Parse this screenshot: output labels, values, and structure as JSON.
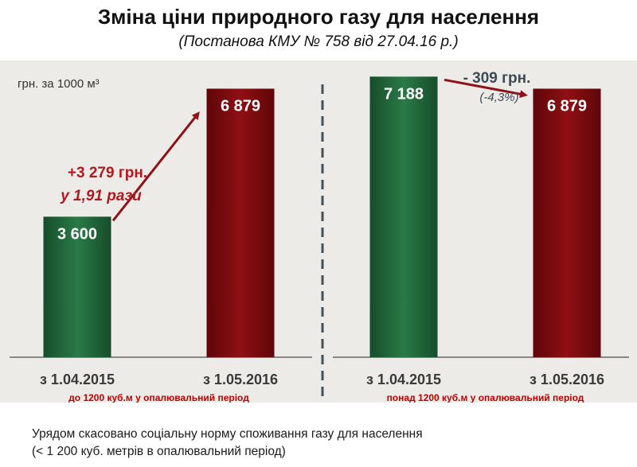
{
  "header": {
    "title": "Зміна ціни природного газу для населення",
    "subtitle": "(Постанова КМУ № 758 від 27.04.16 р.)"
  },
  "chart_data": {
    "type": "bar",
    "unit_label": "грн. за 1000 м³",
    "groups": [
      {
        "label": "до 1200 куб.м у опалювальний період",
        "categories": [
          "з 1.04.2015",
          "з 1.05.2016"
        ],
        "values": [
          3600,
          6879
        ],
        "value_labels": [
          "3 600",
          "6 879"
        ],
        "colors": [
          "#1d5e35",
          "#7e0b0f"
        ],
        "annotation": {
          "line1": "+3 279 грн.",
          "line2": "у 1,91 рази",
          "color": "#b01a1e"
        }
      },
      {
        "label": "понад 1200 куб.м у опалювальний період",
        "categories": [
          "з 1.04.2015",
          "з 1.05.2016"
        ],
        "values": [
          7188,
          6879
        ],
        "value_labels": [
          "7 188",
          "6 879"
        ],
        "colors": [
          "#1d5e35",
          "#7e0b0f"
        ],
        "annotation": {
          "line1": "- 309 грн.",
          "line2": "(-4,3%)",
          "color": "#3c4a55"
        }
      }
    ],
    "ylim": [
      0,
      7500
    ],
    "arrow_color": "#8e1319",
    "group_label_color": "#c00000"
  },
  "footer": {
    "line1": "Урядом скасовано соціальну норму споживання газу для населення",
    "line2": "(< 1 200 куб. метрів в опалювальний період)"
  }
}
